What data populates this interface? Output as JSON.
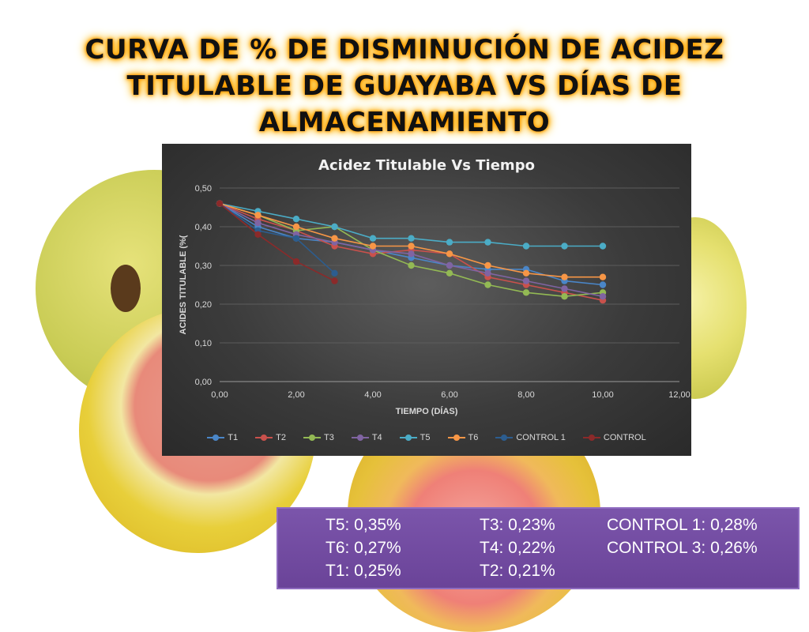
{
  "page_title": "CURVA DE % DE DISMINUCIÓN DE ACIDEZ TITULABLE DE GUAYABA VS DÍAS DE ALMACENAMIENTO",
  "chart_data": {
    "type": "line",
    "title": "Acidez Titulable Vs Tiempo",
    "xlabel": "TIEMPO (DÍAS)",
    "ylabel": "ACIDES TITULABLE (%(",
    "xlim": [
      0,
      12
    ],
    "ylim": [
      0,
      0.5
    ],
    "x_ticks": [
      "0,00",
      "2,00",
      "4,00",
      "6,00",
      "8,00",
      "10,00",
      "12,00"
    ],
    "y_ticks": [
      "0,00",
      "0,10",
      "0,20",
      "0,30",
      "0,40",
      "0,50"
    ],
    "grid": true,
    "legend_position": "bottom",
    "series": [
      {
        "name": "T1",
        "color": "#4a86c8",
        "x": [
          0,
          1,
          2,
          3,
          4,
          5,
          6,
          7,
          8,
          9,
          10
        ],
        "y": [
          0.46,
          0.4,
          0.37,
          0.36,
          0.34,
          0.32,
          0.3,
          0.29,
          0.29,
          0.26,
          0.25
        ]
      },
      {
        "name": "T2",
        "color": "#c9514c",
        "x": [
          0,
          1,
          2,
          3,
          4,
          5,
          6,
          7,
          8,
          9,
          10
        ],
        "y": [
          0.46,
          0.42,
          0.39,
          0.35,
          0.33,
          0.34,
          0.33,
          0.27,
          0.25,
          0.23,
          0.21
        ]
      },
      {
        "name": "T3",
        "color": "#93b954",
        "x": [
          0,
          1,
          2,
          3,
          4,
          5,
          6,
          7,
          8,
          9,
          10
        ],
        "y": [
          0.46,
          0.43,
          0.39,
          0.4,
          0.34,
          0.3,
          0.28,
          0.25,
          0.23,
          0.22,
          0.23
        ]
      },
      {
        "name": "T4",
        "color": "#8064a2",
        "x": [
          0,
          1,
          2,
          3,
          4,
          5,
          6,
          7,
          8,
          9,
          10
        ],
        "y": [
          0.46,
          0.41,
          0.38,
          0.36,
          0.34,
          0.33,
          0.3,
          0.28,
          0.26,
          0.24,
          0.22
        ]
      },
      {
        "name": "T5",
        "color": "#4bacc6",
        "x": [
          0,
          1,
          2,
          3,
          4,
          5,
          6,
          7,
          8,
          9,
          10
        ],
        "y": [
          0.46,
          0.44,
          0.42,
          0.4,
          0.37,
          0.37,
          0.36,
          0.36,
          0.35,
          0.35,
          0.35
        ]
      },
      {
        "name": "T6",
        "color": "#f79646",
        "x": [
          0,
          1,
          2,
          3,
          4,
          5,
          6,
          7,
          8,
          9,
          10
        ],
        "y": [
          0.46,
          0.43,
          0.4,
          0.37,
          0.35,
          0.35,
          0.33,
          0.3,
          0.28,
          0.27,
          0.27
        ]
      },
      {
        "name": "CONTROL 1",
        "color": "#2c5d8f",
        "x": [
          0,
          1,
          2,
          3
        ],
        "y": [
          0.46,
          0.39,
          0.37,
          0.28
        ]
      },
      {
        "name": "CONTROL",
        "color": "#8b2a2a",
        "x": [
          0,
          1,
          2,
          3
        ],
        "y": [
          0.46,
          0.38,
          0.31,
          0.26
        ]
      }
    ]
  },
  "results": {
    "col1": [
      "T5: 0,35%",
      "T6: 0,27%",
      "T1: 0,25%"
    ],
    "col2": [
      "T3: 0,23%",
      "T4: 0,22%",
      "T2: 0,21%"
    ],
    "col3": [
      "CONTROL 1: 0,28%",
      "CONTROL 3: 0,26%"
    ]
  }
}
